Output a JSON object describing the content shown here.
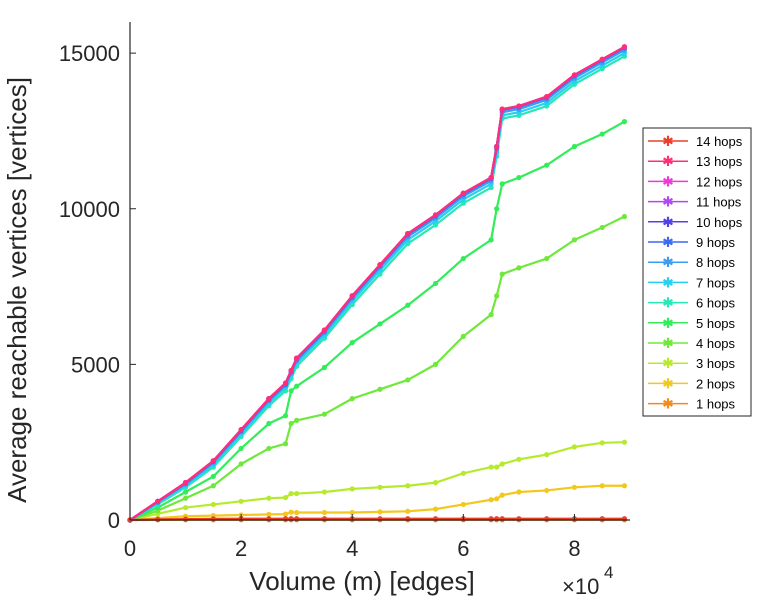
{
  "chart_data": {
    "type": "line",
    "title": "",
    "xlabel": "Volume (m) [edges]",
    "ylabel": "Average reachable vertices [vertices]",
    "x_multiplier_label": "×10",
    "x_multiplier_exponent": "4",
    "xlim": [
      0,
      9
    ],
    "ylim": [
      0,
      16000
    ],
    "xticks": [
      0,
      2,
      4,
      6,
      8
    ],
    "xtick_labels": [
      "0",
      "2",
      "4",
      "6",
      "8"
    ],
    "yticks": [
      0,
      5000,
      10000,
      15000
    ],
    "ytick_labels": [
      "0",
      "5000",
      "10000",
      "15000"
    ],
    "grid": false,
    "legend_position": "right",
    "x": [
      0,
      0.5,
      1,
      1.5,
      2,
      2.5,
      2.8,
      2.9,
      3,
      3.5,
      4,
      4.5,
      5,
      5.5,
      6,
      6.5,
      6.6,
      6.7,
      7,
      7.5,
      8,
      8.5,
      8.9
    ],
    "series": [
      {
        "name": "14 hops",
        "color": "#e8402a",
        "values": [
          0,
          20,
          30,
          35,
          40,
          40,
          40,
          40,
          40,
          40,
          40,
          40,
          40,
          40,
          40,
          40,
          40,
          40,
          40,
          40,
          40,
          40,
          40
        ]
      },
      {
        "name": "13 hops",
        "color": "#ff2e79",
        "values": [
          0,
          600,
          1200,
          1900,
          2900,
          3900,
          4400,
          4800,
          5200,
          6100,
          7200,
          8200,
          9200,
          9800,
          10500,
          11000,
          12000,
          13200,
          13300,
          13600,
          14300,
          14800,
          15200
        ]
      },
      {
        "name": "12 hops",
        "color": "#f038d8",
        "values": [
          0,
          600,
          1200,
          1900,
          2900,
          3900,
          4400,
          4800,
          5200,
          6100,
          7200,
          8200,
          9200,
          9800,
          10500,
          11000,
          12000,
          13200,
          13300,
          13600,
          14300,
          14800,
          15200
        ]
      },
      {
        "name": "11 hops",
        "color": "#b146f2",
        "values": [
          0,
          600,
          1200,
          1900,
          2900,
          3900,
          4400,
          4800,
          5200,
          6100,
          7200,
          8200,
          9200,
          9800,
          10500,
          11000,
          12000,
          13200,
          13300,
          13600,
          14300,
          14800,
          15200
        ]
      },
      {
        "name": "10 hops",
        "color": "#5442e6",
        "values": [
          0,
          600,
          1200,
          1900,
          2900,
          3900,
          4400,
          4800,
          5200,
          6100,
          7200,
          8200,
          9200,
          9800,
          10500,
          11000,
          12000,
          13200,
          13300,
          13600,
          14300,
          14800,
          15200
        ]
      },
      {
        "name": "9 hops",
        "color": "#3a6cf0",
        "values": [
          0,
          590,
          1180,
          1880,
          2870,
          3870,
          4370,
          4770,
          5170,
          6070,
          7170,
          8170,
          9170,
          9770,
          10470,
          10970,
          11970,
          13170,
          13270,
          13570,
          14270,
          14770,
          15170
        ]
      },
      {
        "name": "8 hops",
        "color": "#3b9cf2",
        "values": [
          0,
          570,
          1150,
          1840,
          2830,
          3830,
          4320,
          4720,
          5120,
          6020,
          7120,
          8120,
          9100,
          9700,
          10400,
          10900,
          11900,
          13100,
          13200,
          13500,
          14200,
          14700,
          15100
        ]
      },
      {
        "name": "7 hops",
        "color": "#27d0f0",
        "values": [
          0,
          540,
          1100,
          1780,
          2760,
          3760,
          4250,
          4640,
          5040,
          5940,
          7030,
          8020,
          9000,
          9600,
          10300,
          10800,
          11800,
          13000,
          13100,
          13400,
          14100,
          14600,
          15000
        ]
      },
      {
        "name": "6 hops",
        "color": "#26e8b6",
        "values": [
          0,
          500,
          1050,
          1700,
          2680,
          3670,
          4150,
          4540,
          4940,
          5840,
          6920,
          7900,
          8880,
          9480,
          10180,
          10680,
          11680,
          12900,
          13000,
          13300,
          14000,
          14500,
          14900
        ]
      },
      {
        "name": "5 hops",
        "color": "#32ec5a",
        "values": [
          0,
          400,
          900,
          1400,
          2300,
          3100,
          3350,
          4150,
          4300,
          4900,
          5700,
          6300,
          6900,
          7600,
          8400,
          9000,
          10000,
          10800,
          11000,
          11400,
          12000,
          12400,
          12800
        ]
      },
      {
        "name": "4 hops",
        "color": "#6ee83a",
        "values": [
          0,
          300,
          700,
          1100,
          1800,
          2300,
          2450,
          3100,
          3200,
          3400,
          3900,
          4200,
          4500,
          5000,
          5900,
          6600,
          7200,
          7900,
          8100,
          8400,
          9000,
          9400,
          9750
        ]
      },
      {
        "name": "3 hops",
        "color": "#b6ea2c",
        "values": [
          0,
          200,
          400,
          500,
          600,
          700,
          720,
          850,
          850,
          900,
          1000,
          1050,
          1100,
          1200,
          1500,
          1700,
          1700,
          1800,
          1950,
          2100,
          2350,
          2480,
          2500
        ]
      },
      {
        "name": "2 hops",
        "color": "#f2c81e",
        "values": [
          0,
          60,
          120,
          140,
          160,
          180,
          190,
          250,
          240,
          240,
          240,
          260,
          280,
          350,
          500,
          650,
          680,
          800,
          900,
          950,
          1050,
          1100,
          1100
        ]
      },
      {
        "name": "1 hops",
        "color": "#f58a1a",
        "values": [
          0,
          5,
          8,
          8,
          8,
          8,
          8,
          8,
          8,
          8,
          8,
          8,
          8,
          8,
          8,
          8,
          8,
          8,
          8,
          8,
          8,
          8,
          8
        ]
      }
    ]
  }
}
